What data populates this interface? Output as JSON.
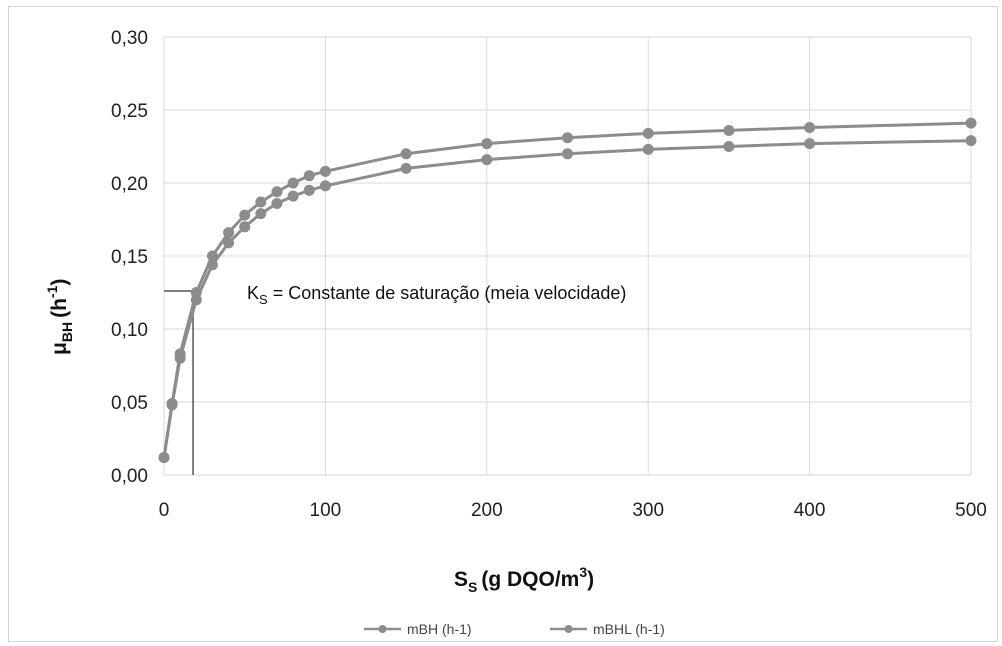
{
  "chart_data": {
    "type": "line",
    "x_axis": {
      "range": [
        0,
        500
      ],
      "ticks": [
        0,
        100,
        200,
        300,
        400,
        500
      ],
      "tick_labels": [
        "0",
        "100",
        "200",
        "300",
        "400",
        "500"
      ],
      "label_main": "S",
      "label_sub": "S",
      "label_rest": "(g DQO/m",
      "label_sup": "3",
      "label_end": ")"
    },
    "y_axis": {
      "range": [
        0,
        0.3
      ],
      "ticks": [
        0,
        0.05,
        0.1,
        0.15,
        0.2,
        0.25,
        0.3
      ],
      "tick_labels": [
        "0,00",
        "0,05",
        "0,10",
        "0,15",
        "0,20",
        "0,25",
        "0,30"
      ],
      "label_main": "μ",
      "label_sub": "BH",
      "label_rest": "(h",
      "label_sup": "-1",
      "label_end": ")"
    },
    "grid": true,
    "legend_position": "bottom-center",
    "series": [
      {
        "name": "mBH (h-1)",
        "color": "#8c8c8c",
        "x": [
          0,
          5,
          10,
          20,
          30,
          40,
          50,
          60,
          70,
          80,
          90,
          100,
          150,
          200,
          250,
          300,
          350,
          400,
          500
        ],
        "y": [
          0.012,
          0.048,
          0.08,
          0.12,
          0.144,
          0.159,
          0.17,
          0.179,
          0.186,
          0.191,
          0.195,
          0.198,
          0.21,
          0.216,
          0.22,
          0.223,
          0.225,
          0.227,
          0.229
        ]
      },
      {
        "name": "mBHL (h-1)",
        "color": "#8c8c8c",
        "x": [
          0,
          5,
          10,
          20,
          30,
          40,
          50,
          60,
          70,
          80,
          90,
          100,
          150,
          200,
          250,
          300,
          350,
          400,
          500
        ],
        "y": [
          0.012,
          0.049,
          0.083,
          0.125,
          0.15,
          0.166,
          0.178,
          0.187,
          0.194,
          0.2,
          0.205,
          0.208,
          0.22,
          0.227,
          0.231,
          0.234,
          0.236,
          0.238,
          0.241
        ]
      }
    ],
    "reference": {
      "ks_x": 18,
      "ks_y": 0.126
    },
    "annotation": {
      "k": "K",
      "sub": "S",
      "text": " = Constante de saturação (meia velocidade)"
    }
  }
}
